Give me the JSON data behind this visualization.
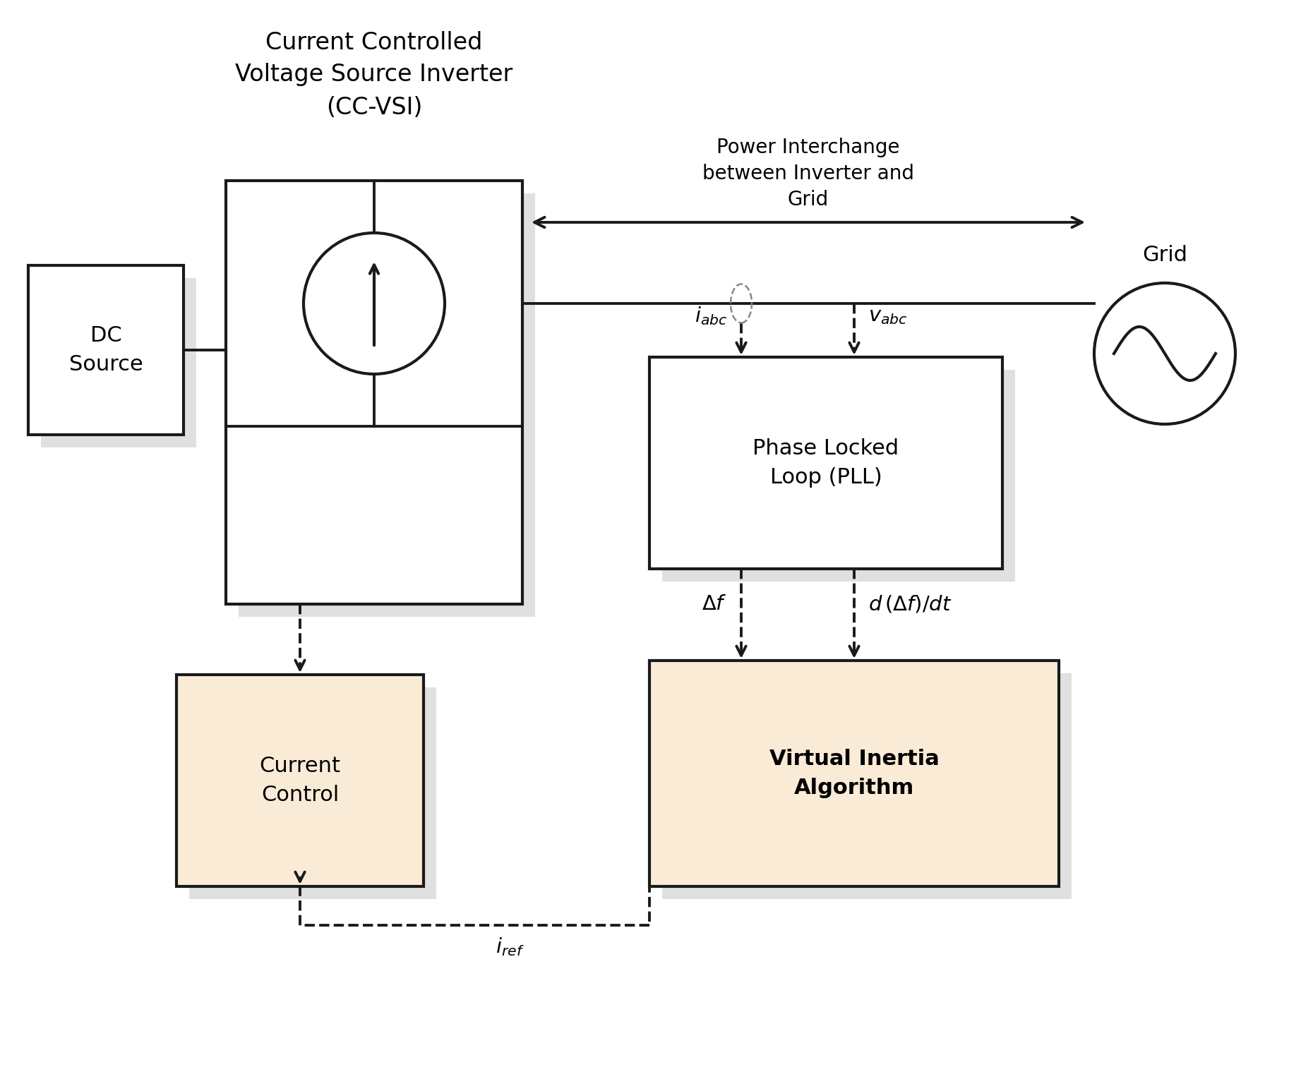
{
  "bg_color": "#ffffff",
  "box_fill_white": "#ffffff",
  "box_fill_tan": "#faebd7",
  "box_edge": "#1a1a1a",
  "line_color": "#1a1a1a",
  "arrow_color": "#1a1a1a",
  "shadow_color": "#999999",
  "title_text": "Current Controlled\nVoltage Source Inverter\n(CC-VSI)",
  "dc_source_text": "DC\nSource",
  "current_control_text": "Current\nControl",
  "pll_text": "Phase Locked\nLoop (PLL)",
  "via_text": "Virtual Inertia\nAlgorithm",
  "grid_text": "Grid",
  "power_interchange_text": "Power Interchange\nbetween Inverter and\nGrid",
  "i_abc_label": "$i_{abc}$",
  "v_abc_label": "$v_{abc}$",
  "delta_f_label": "$\\Delta f$",
  "d_delta_f_label": "$d\\,(\\Delta f)/dt$",
  "i_ref_label": "$i_{ref}$",
  "figsize": [
    18.6,
    15.36
  ],
  "dpi": 100
}
